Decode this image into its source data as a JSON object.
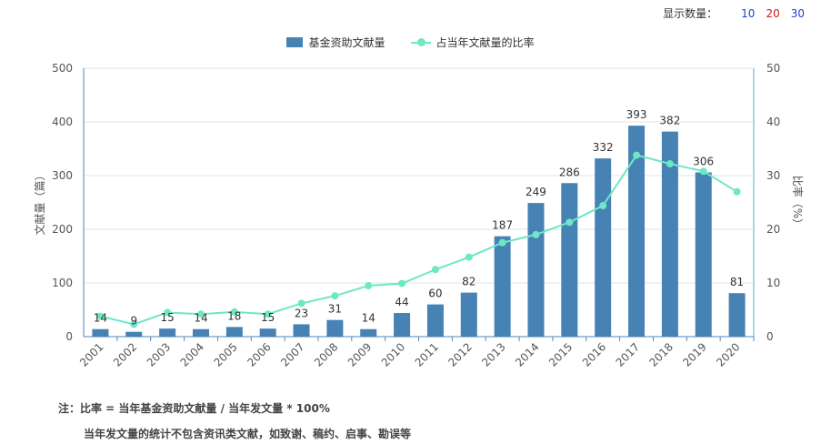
{
  "controls": {
    "label": "显示数量：",
    "options": [
      {
        "text": "10",
        "color": "#1a3fd1"
      },
      {
        "text": "20",
        "color": "#d11a1a"
      },
      {
        "text": "30",
        "color": "#1a3fd1"
      }
    ]
  },
  "colors": {
    "bar": "#4682b4",
    "line": "#6ee7c4",
    "axis_left": "#4f86b7",
    "axis_right": "#5aaec8",
    "grid": "#e3e3e3"
  },
  "chart_data": {
    "type": "bar",
    "categories": [
      "2001",
      "2002",
      "2003",
      "2004",
      "2005",
      "2006",
      "2007",
      "2008",
      "2009",
      "2010",
      "2011",
      "2012",
      "2013",
      "2014",
      "2015",
      "2016",
      "2017",
      "2018",
      "2019",
      "2020"
    ],
    "series": [
      {
        "name": "基金资助文献量",
        "type": "bar",
        "axis": "left",
        "values": [
          14,
          9,
          15,
          14,
          18,
          15,
          23,
          31,
          14,
          44,
          60,
          82,
          187,
          249,
          286,
          332,
          393,
          382,
          306,
          81
        ]
      },
      {
        "name": "占当年文献量的比率",
        "type": "line",
        "axis": "right",
        "values": [
          3.8,
          2.3,
          4.5,
          4.2,
          4.6,
          4.2,
          6.2,
          7.6,
          9.5,
          9.9,
          12.5,
          14.8,
          17.5,
          19.0,
          21.3,
          24.4,
          33.8,
          32.2,
          30.8,
          27.0
        ]
      }
    ],
    "ylabel": "文献量（篇）",
    "y2label": "比率（%）",
    "ylim": [
      0,
      500
    ],
    "y2lim": [
      0,
      50
    ],
    "yticks": [
      "0",
      "100",
      "200",
      "300",
      "400",
      "500"
    ],
    "y2ticks": [
      "0",
      "10",
      "20",
      "30",
      "40",
      "50"
    ],
    "grid": true,
    "legend_position": "top-center"
  },
  "notes": {
    "line1": "注：比率 = 当年基金资助文献量 / 当年发文量 * 100%",
    "line2": "当年发文量的统计不包含资讯类文献，如致谢、稿约、启事、勘误等"
  }
}
